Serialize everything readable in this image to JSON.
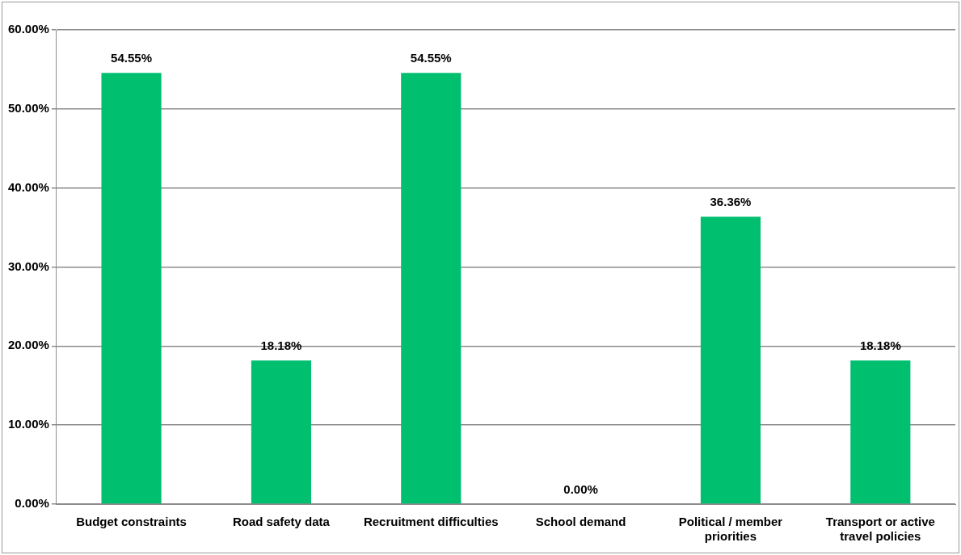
{
  "chart_data": {
    "type": "bar",
    "categories": [
      "Budget constraints",
      "Road safety data",
      "Recruitment difficulties",
      "School demand",
      "Political / member priorities",
      "Transport or active travel policies"
    ],
    "values": [
      54.55,
      18.18,
      54.55,
      0,
      36.36,
      18.18
    ],
    "value_labels": [
      "54.55%",
      "18.18%",
      "54.55%",
      "0.00%",
      "36.36%",
      "18.18%"
    ],
    "color": "#00bf6f",
    "ylim": [
      0,
      60
    ],
    "yticks": [
      {
        "value": 0,
        "label": "0.00%"
      },
      {
        "value": 10,
        "label": "10.00%"
      },
      {
        "value": 20,
        "label": "20.00%"
      },
      {
        "value": 30,
        "label": "30.00%"
      },
      {
        "value": 40,
        "label": "40.00%"
      },
      {
        "value": 50,
        "label": "50.00%"
      },
      {
        "value": 60,
        "label": "60.00%"
      }
    ],
    "grid": "y",
    "legend": false
  }
}
